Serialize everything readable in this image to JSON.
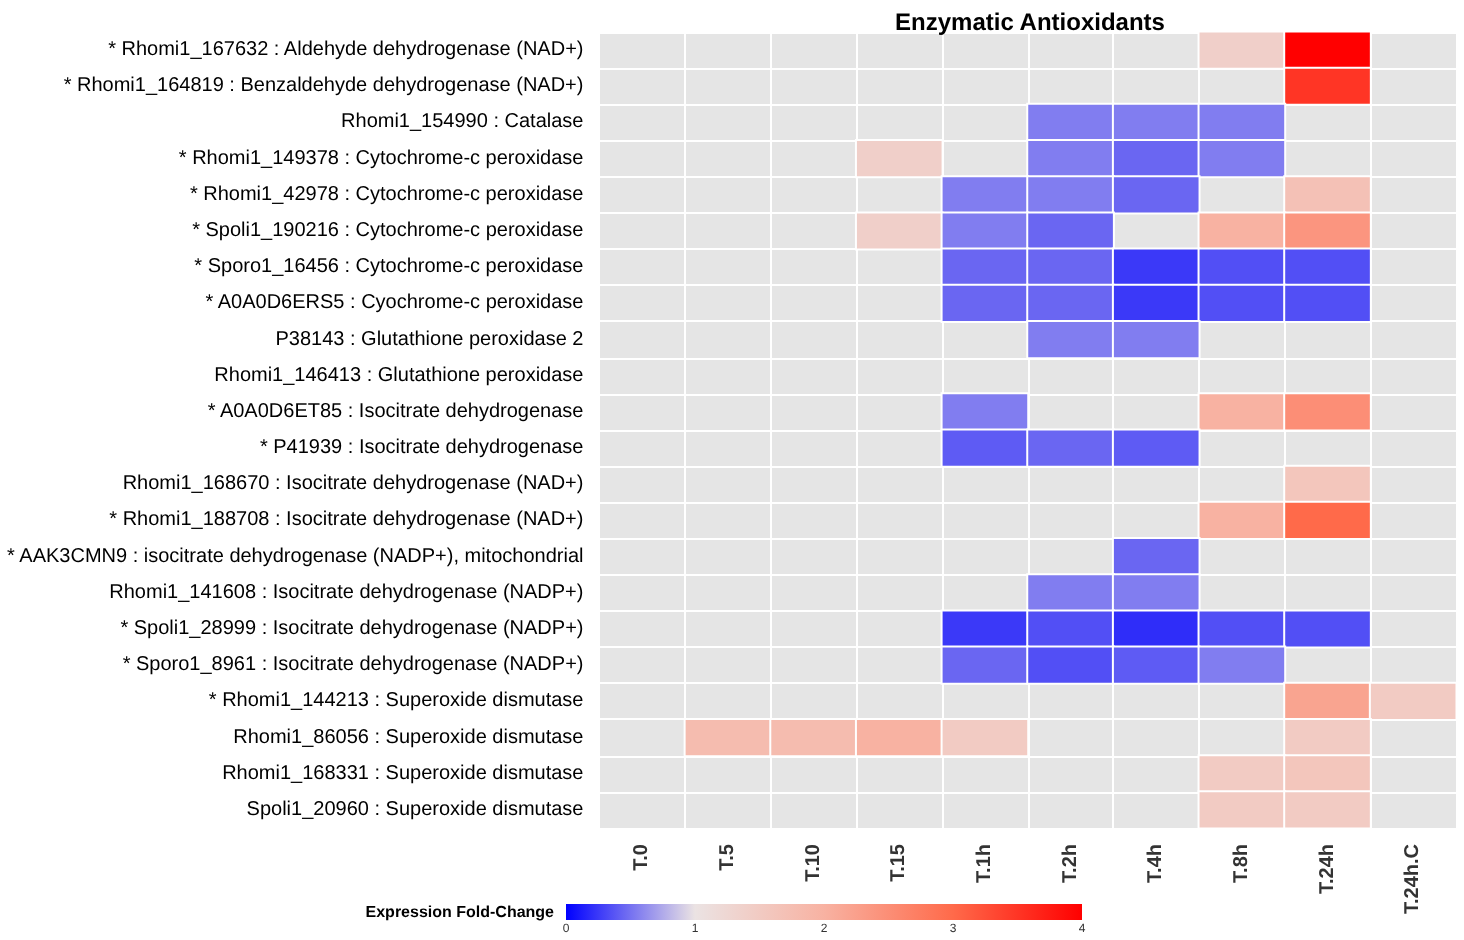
{
  "chart_data": {
    "type": "heatmap",
    "title": "Enzymatic Antioxidants",
    "clabel": "Expression Fold-Change",
    "categories": [
      "T.0",
      "T.5",
      "T.10",
      "T.15",
      "T.1h",
      "T.2h",
      "T.4h",
      "T.8h",
      "T.24h",
      "T.24h.C"
    ],
    "y_categories": [
      "* Rhomi1_167632 : Aldehyde dehydrogenase (NAD+)",
      "* Rhomi1_164819 : Benzaldehyde dehydrogenase (NAD+)",
      "Rhomi1_154990 : Catalase",
      "* Rhomi1_149378 : Cytochrome-c peroxidase",
      "* Rhomi1_42978 : Cytochrome-c peroxidase",
      "* Spoli1_190216 : Cytochrome-c peroxidase",
      "* Sporo1_16456 : Cytochrome-c peroxidase",
      "* A0A0D6ERS5 : Cyochrome-c peroxidase",
      "P38143 : Glutathione peroxidase 2",
      "Rhomi1_146413 : Glutathione peroxidase",
      "* A0A0D6ET85 : Isocitrate dehydrogenase",
      "* P41939 : Isocitrate dehydrogenase",
      "Rhomi1_168670 : Isocitrate dehydrogenase (NAD+)",
      "* Rhomi1_188708 : Isocitrate dehydrogenase (NAD+)",
      "* AAK3CMN9 : isocitrate dehydrogenase (NADP+), mitochondrial",
      "Rhomi1_141608 : Isocitrate dehydrogenase (NADP+)",
      "* Spoli1_28999 : Isocitrate dehydrogenase (NADP+)",
      "* Sporo1_8961 : Isocitrate dehydrogenase (NADP+)",
      "* Rhomi1_144213 : Superoxide dismutase",
      "Rhomi1_86056 : Superoxide dismutase",
      "Rhomi1_168331 : Superoxide dismutase",
      "Spoli1_20960 : Superoxide dismutase"
    ],
    "cells": [
      [
        null,
        null,
        null,
        null,
        null,
        null,
        null,
        1.4,
        4,
        null
      ],
      [
        null,
        null,
        null,
        null,
        null,
        null,
        null,
        null,
        3.5,
        null
      ],
      [
        null,
        null,
        null,
        null,
        null,
        0.55,
        0.55,
        0.55,
        null,
        null
      ],
      [
        null,
        null,
        null,
        1.4,
        null,
        0.55,
        0.45,
        0.55,
        null,
        null
      ],
      [
        null,
        null,
        null,
        null,
        0.55,
        0.55,
        0.45,
        null,
        1.7,
        null
      ],
      [
        null,
        null,
        null,
        1.4,
        0.55,
        0.45,
        null,
        2.0,
        2.4,
        null
      ],
      [
        null,
        null,
        null,
        null,
        0.45,
        0.45,
        0.25,
        0.35,
        0.35,
        null
      ],
      [
        null,
        null,
        null,
        null,
        0.45,
        0.45,
        0.25,
        0.35,
        0.35,
        null
      ],
      [
        null,
        null,
        null,
        null,
        null,
        0.55,
        0.55,
        null,
        null,
        null
      ],
      [
        null,
        null,
        null,
        null,
        null,
        null,
        null,
        null,
        null,
        null
      ],
      [
        null,
        null,
        null,
        null,
        0.55,
        null,
        null,
        2.0,
        2.5,
        null
      ],
      [
        null,
        null,
        null,
        null,
        0.4,
        0.45,
        0.4,
        null,
        null,
        null
      ],
      [
        null,
        null,
        null,
        null,
        null,
        null,
        null,
        null,
        1.6,
        null
      ],
      [
        null,
        null,
        null,
        null,
        null,
        null,
        null,
        2.0,
        3.0,
        null
      ],
      [
        null,
        null,
        null,
        null,
        null,
        null,
        0.45,
        null,
        null,
        null
      ],
      [
        null,
        null,
        null,
        null,
        null,
        0.55,
        0.55,
        null,
        null,
        null
      ],
      [
        null,
        null,
        null,
        null,
        0.25,
        0.35,
        0.2,
        0.35,
        0.35,
        null
      ],
      [
        null,
        null,
        null,
        null,
        0.45,
        0.35,
        0.4,
        0.55,
        null,
        null
      ],
      [
        null,
        null,
        null,
        null,
        null,
        null,
        null,
        null,
        2.2,
        1.5
      ],
      [
        null,
        1.8,
        1.8,
        2.0,
        1.5,
        null,
        null,
        null,
        1.5,
        null
      ],
      [
        null,
        null,
        null,
        null,
        null,
        null,
        null,
        1.5,
        1.6,
        null
      ],
      [
        null,
        null,
        null,
        null,
        null,
        null,
        null,
        1.5,
        1.5,
        null
      ]
    ],
    "clim": [
      0,
      4
    ],
    "cticks": [
      0,
      1,
      2,
      3,
      4
    ]
  }
}
